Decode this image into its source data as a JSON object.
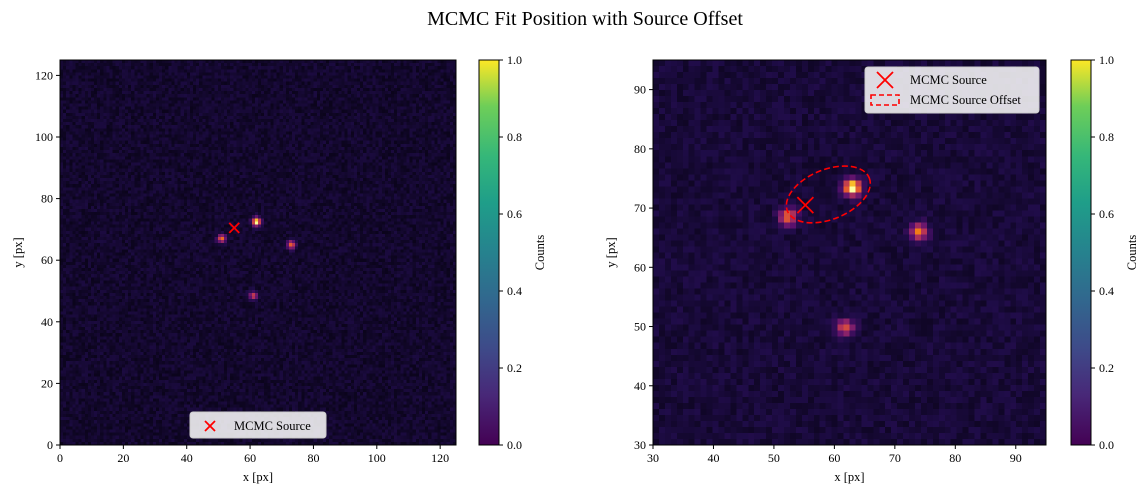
{
  "figure": {
    "title": "MCMC Fit Position with Source Offset"
  },
  "chart_data": [
    {
      "type": "heatmap",
      "panel": "left",
      "xlabel": "x [px]",
      "ylabel": "y [px]",
      "xlim": [
        0,
        125
      ],
      "ylim": [
        0,
        125
      ],
      "xticks": [
        "0",
        "20",
        "40",
        "60",
        "80",
        "100",
        "120"
      ],
      "yticks": [
        "0",
        "20",
        "40",
        "60",
        "80",
        "100",
        "120"
      ],
      "cmap": "inferno",
      "background_level": 0.08,
      "sources": [
        {
          "x": 62,
          "y": 72.5,
          "amp": 1.0,
          "sigma": 0.9
        },
        {
          "x": 51,
          "y": 67,
          "amp": 0.6,
          "sigma": 0.9
        },
        {
          "x": 73,
          "y": 65,
          "amp": 0.55,
          "sigma": 0.9
        },
        {
          "x": 61,
          "y": 48.5,
          "amp": 0.45,
          "sigma": 0.9
        }
      ],
      "marker": {
        "name": "MCMC Source",
        "x": 55,
        "y": 70.5,
        "color": "#ff0000",
        "symbol": "x"
      },
      "legend": {
        "entries": [
          "MCMC Source"
        ],
        "position": "lower-center"
      },
      "colorbar": {
        "label": "Counts",
        "min": 0.0,
        "max": 1.0,
        "cmap": "viridis",
        "ticks": [
          "0.0",
          "0.2",
          "0.4",
          "0.6",
          "0.8",
          "1.0"
        ]
      }
    },
    {
      "type": "heatmap",
      "panel": "right",
      "xlabel": "x [px]",
      "ylabel": "y [px]",
      "xlim": [
        30,
        95
      ],
      "ylim": [
        30,
        95
      ],
      "xticks": [
        "30",
        "40",
        "50",
        "60",
        "70",
        "80",
        "90"
      ],
      "yticks": [
        "30",
        "40",
        "50",
        "60",
        "70",
        "80",
        "90"
      ],
      "cmap": "inferno",
      "background_level": 0.1,
      "sources": [
        {
          "x": 63,
          "y": 73.5,
          "amp": 1.0,
          "sigma": 0.95
        },
        {
          "x": 52.3,
          "y": 68.5,
          "amp": 0.6,
          "sigma": 0.95
        },
        {
          "x": 74,
          "y": 66,
          "amp": 0.6,
          "sigma": 0.95
        },
        {
          "x": 61.8,
          "y": 49.8,
          "amp": 0.5,
          "sigma": 0.95
        }
      ],
      "marker": {
        "name": "MCMC Source",
        "x": 55.2,
        "y": 70.5,
        "color": "#ff0000",
        "symbol": "x"
      },
      "offset_ellipse": {
        "name": "MCMC Source Offset",
        "cx": 59,
        "cy": 72.3,
        "rx": 7.3,
        "ry": 4.2,
        "angle_deg": 22,
        "color": "#ff0000",
        "linestyle": "dashed"
      },
      "legend": {
        "entries": [
          "MCMC Source",
          "MCMC Source Offset"
        ],
        "position": "upper-right"
      },
      "colorbar": {
        "label": "Counts",
        "min": 0.0,
        "max": 1.0,
        "cmap": "viridis",
        "ticks": [
          "0.0",
          "0.2",
          "0.4",
          "0.6",
          "0.8",
          "1.0"
        ]
      }
    }
  ]
}
